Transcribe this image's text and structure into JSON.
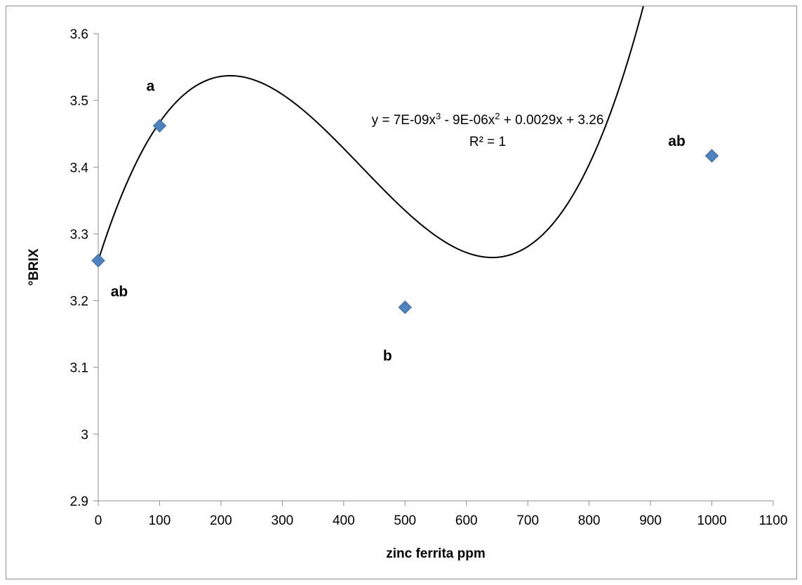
{
  "chart_data": {
    "type": "scatter",
    "title": "",
    "xlabel": "zinc ferrita ppm",
    "ylabel": "°BRIX",
    "xlim": [
      0,
      1100
    ],
    "ylim": [
      2.9,
      3.6
    ],
    "x_ticks": [
      0,
      100,
      200,
      300,
      400,
      500,
      600,
      700,
      800,
      900,
      1000,
      1100
    ],
    "y_ticks": [
      2.9,
      3,
      3.1,
      3.2,
      3.3,
      3.4,
      3.5,
      3.6
    ],
    "x_tick_labels": [
      "0",
      "100",
      "200",
      "300",
      "400",
      "500",
      "600",
      "700",
      "800",
      "900",
      "1000",
      "1100"
    ],
    "y_tick_labels": [
      "2.9",
      "3",
      "3.1",
      "3.2",
      "3.3",
      "3.4",
      "3.5",
      "3.6"
    ],
    "grid": false,
    "series": [
      {
        "x": [
          0,
          100,
          500,
          1000
        ],
        "y": [
          3.26,
          3.462,
          3.19,
          3.417
        ],
        "labels": [
          "ab",
          "a",
          "b",
          "ab"
        ],
        "marker": "diamond",
        "color": "#4f81bd"
      }
    ],
    "trendline": {
      "type": "polynomial",
      "order": 3,
      "coefficients": [
        3.26,
        0.0029,
        -9e-06,
        7e-09
      ],
      "color": "#000000",
      "equation_parts": [
        "y = 7E-09x",
        "3",
        " - 9E-06x",
        "2",
        " + 0.0029x + 3.26"
      ],
      "r_squared_label": "R² = 1"
    }
  }
}
